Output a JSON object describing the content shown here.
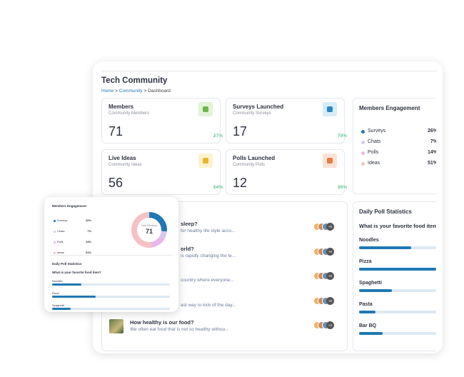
{
  "header": {
    "title": "Tech Community",
    "breadcrumb": [
      "Home",
      "Community",
      "Dashboard"
    ],
    "separator": ">"
  },
  "stats": [
    {
      "title": "Members",
      "subtitle": "Community Members",
      "value": "71",
      "change": "27%",
      "icon_bg": "#e3f3d8",
      "icon_fg": "#6bb84a"
    },
    {
      "title": "Surveys Launched",
      "subtitle": "Community Surveys",
      "value": "17",
      "change": "78%",
      "icon_bg": "#d6edf9",
      "icon_fg": "#2b87c6"
    },
    {
      "title": "Live Ideas",
      "subtitle": "Community Ideas",
      "value": "56",
      "change": "54%",
      "icon_bg": "#fdf2cf",
      "icon_fg": "#e8b92c"
    },
    {
      "title": "Polls Launched",
      "subtitle": "Community Polls",
      "value": "12",
      "change": "36%",
      "icon_bg": "#fbe2d4",
      "icon_fg": "#e77a4a"
    }
  ],
  "engagement": {
    "title": "Members Engagement",
    "total_label": "Total Members",
    "total": "71",
    "items": [
      {
        "name": "Surveys",
        "value": 26,
        "label": "26%",
        "color": "#1f78b4"
      },
      {
        "name": "Chats",
        "value": 7,
        "label": "7%",
        "color": "#d8c8f0"
      },
      {
        "name": "Polls",
        "value": 14,
        "label": "14%",
        "color": "#e7b8ea"
      },
      {
        "name": "Ideas",
        "value": 51,
        "label": "51%",
        "color": "#f6c1c4"
      }
    ]
  },
  "discussions": [
    {
      "title": "sleep?",
      "subtitle": "for healthy life style acco...",
      "more": "+6"
    },
    {
      "title": "orld?",
      "subtitle": "is rapidly changing the te...",
      "more": "+6"
    },
    {
      "title": "",
      "subtitle": "country where everyone...",
      "more": "+6"
    },
    {
      "title": "",
      "subtitle": "ast way to kick of the day...",
      "more": "+6"
    },
    {
      "title": "How healthy is our food?",
      "subtitle": "We often eat food that is not so healthy withou...",
      "more": "+4"
    }
  ],
  "poll": {
    "title": "Daily Poll Statistics",
    "question": "What is your favorite food item?",
    "options": [
      {
        "name": "Noodles",
        "value": 68
      },
      {
        "name": "Pizza",
        "value": 100
      },
      {
        "name": "Spaghetti",
        "value": 43
      },
      {
        "name": "Pasta",
        "value": 21
      },
      {
        "name": "Bar BQ",
        "value": 31
      }
    ]
  },
  "overlay_poll": {
    "options": [
      {
        "name": "Noodles",
        "value": 25
      },
      {
        "name": "Pizza",
        "value": 37
      },
      {
        "name": "Spaghetti",
        "value": 16
      }
    ]
  }
}
